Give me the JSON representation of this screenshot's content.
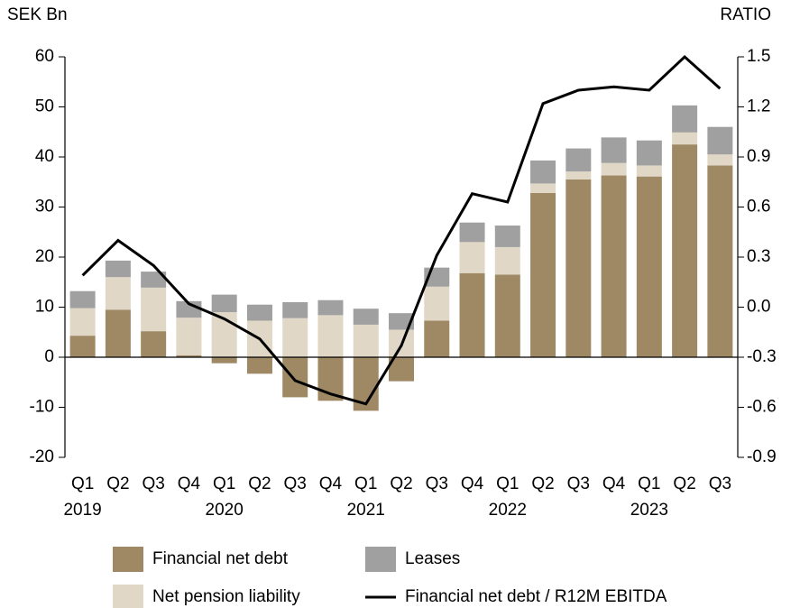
{
  "chart_data": {
    "type": "bar",
    "y_axis_label": "SEK Bn",
    "y2_axis_label": "RATIO",
    "categories": [
      "Q1",
      "Q2",
      "Q3",
      "Q4",
      "Q1",
      "Q2",
      "Q3",
      "Q4",
      "Q1",
      "Q2",
      "Q3",
      "Q4",
      "Q1",
      "Q2",
      "Q3",
      "Q4",
      "Q1",
      "Q2",
      "Q3"
    ],
    "year_labels": [
      "2019",
      null,
      null,
      null,
      "2020",
      null,
      null,
      null,
      "2021",
      null,
      null,
      null,
      "2022",
      null,
      null,
      null,
      "2023",
      null,
      null
    ],
    "series": [
      {
        "name": "Financial net debt",
        "type": "bar",
        "color": "#9e8964",
        "values": [
          4.3,
          9.5,
          5.2,
          0.4,
          -1.2,
          -3.3,
          -8.0,
          -8.7,
          -10.7,
          -4.8,
          7.3,
          16.8,
          16.5,
          32.8,
          35.5,
          36.3,
          36.1,
          42.5,
          38.3
        ]
      },
      {
        "name": "Net pension liability",
        "type": "bar",
        "color": "#e0d7c6",
        "values": [
          5.5,
          6.5,
          8.7,
          7.5,
          9.0,
          7.3,
          7.8,
          8.4,
          6.5,
          5.5,
          6.8,
          6.2,
          5.5,
          1.9,
          1.6,
          2.5,
          2.2,
          2.4,
          2.2
        ]
      },
      {
        "name": "Leases",
        "type": "bar",
        "color": "#a0a0a0",
        "values": [
          3.4,
          3.3,
          3.2,
          3.3,
          3.5,
          3.2,
          3.2,
          3.0,
          3.2,
          3.3,
          3.8,
          3.9,
          4.3,
          4.6,
          4.6,
          5.1,
          5.0,
          5.4,
          5.5
        ]
      },
      {
        "name": "Financial net debt / R12M EBITDA",
        "type": "line",
        "axis": "y2",
        "color": "#000000",
        "values": [
          0.19,
          0.4,
          0.25,
          0.02,
          -0.07,
          -0.19,
          -0.44,
          -0.52,
          -0.58,
          -0.23,
          0.31,
          0.68,
          0.63,
          1.22,
          1.3,
          1.32,
          1.3,
          1.5,
          1.31
        ]
      }
    ],
    "ylim": [
      -20,
      60
    ],
    "yticks": [
      -20,
      -10,
      0,
      10,
      20,
      30,
      40,
      50,
      60
    ],
    "y2lim": [
      -0.9,
      1.5
    ],
    "y2ticks": [
      -0.9,
      -0.6,
      -0.3,
      {
        "value": 0,
        "label": "0.0"
      },
      0.3,
      0.6,
      0.9,
      1.2,
      1.5
    ],
    "grid": false
  }
}
